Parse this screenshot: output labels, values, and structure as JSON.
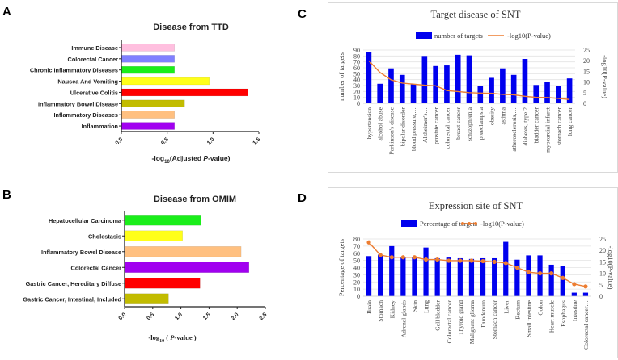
{
  "panel_letters": [
    "A",
    "B",
    "C",
    "D"
  ],
  "chart_data": [
    {
      "id": "A",
      "type": "bar",
      "orientation": "horizontal",
      "title": "Disease from TTD",
      "xlabel_prefix": "-log",
      "xlabel_sub": "10",
      "xlabel_mid": "(Adjusted ",
      "xlabel_italic": "P",
      "xlabel_suffix": "-value)",
      "xlim": [
        0,
        1.5
      ],
      "xticks": [
        0,
        0.5,
        1.0,
        1.5
      ],
      "xtick_labels": [
        "0.0",
        "0.5",
        "1.0",
        "1.5"
      ],
      "grid": false,
      "categories": [
        "Immune Disease",
        "Colorectal Cancer",
        "Chronic Inflammatory Diseases",
        "Nausea And Vomiting",
        "Ulcerative Colitis",
        "Inflammatory Bowel Disease",
        "Inflammatory Diseases",
        "Inflammation"
      ],
      "values": [
        0.58,
        0.58,
        0.58,
        0.96,
        1.38,
        0.69,
        0.58,
        0.58
      ],
      "colors": [
        "#ffbfdf",
        "#8080ff",
        "#1aee1a",
        "#ffff1a",
        "#ff0000",
        "#c2bc00",
        "#ffc080",
        "#a100f0"
      ]
    },
    {
      "id": "B",
      "type": "bar",
      "orientation": "horizontal",
      "title": "Disease from OMIM",
      "xlabel_prefix": "-log",
      "xlabel_sub": "10",
      "xlabel_mid": " ( ",
      "xlabel_italic": "P",
      "xlabel_suffix": "-value )",
      "xlim": [
        0,
        2.5
      ],
      "xticks": [
        0,
        0.5,
        1.0,
        1.5,
        2.0,
        2.5
      ],
      "xtick_labels": [
        "0.0",
        "0.5",
        "1.0",
        "1.5",
        "2.0",
        "2.5"
      ],
      "grid": false,
      "categories": [
        "Hepatocellular Carcinoma",
        "Cholestasis",
        "Inflammatory Bowel Disease",
        "Colorectal Cancer",
        "Gastric Cancer, Hereditary Diffuse",
        "Gastric Cancer, Intestinal, Included"
      ],
      "values": [
        1.36,
        1.03,
        2.07,
        2.21,
        1.34,
        0.78
      ],
      "colors": [
        "#1aee1a",
        "#ffff1a",
        "#ffc080",
        "#a100f0",
        "#ff0000",
        "#c2bc00"
      ]
    },
    {
      "id": "C",
      "type": "bar",
      "combo": "bar+line",
      "title": "Target disease of SNT",
      "ylabel": "number of targets",
      "y2label": "-log10(P-value)",
      "ylim": [
        0,
        90
      ],
      "yticks": [
        0,
        10,
        20,
        30,
        40,
        50,
        60,
        70,
        80,
        90
      ],
      "y2lim": [
        0,
        25
      ],
      "y2ticks": [
        0,
        5,
        10,
        15,
        20,
        25
      ],
      "grid": true,
      "legend_position": "top",
      "legend": [
        "number of targets",
        "-log10(P-value)"
      ],
      "line_markers": false,
      "categories": [
        "hypertension",
        "alcohol abuse",
        "Parkinson's disease",
        "bipolar disorder",
        "blood pressure,…",
        "Alzheimer's…",
        "prostate cancer",
        "colorectal cancer",
        "breast cancer",
        "schizophrenia",
        "preeclampsia",
        "obesity",
        "asthma",
        "atherosclerosis,…",
        "diabetes, type 2",
        "bladder cancer",
        "myocardial infarct",
        "stomach cancer",
        "lung cancer"
      ],
      "series": [
        {
          "name": "number of targets",
          "axis": "left",
          "kind": "bar",
          "color": "#0000ee",
          "values": [
            87,
            33,
            59,
            48,
            32,
            80,
            63,
            64,
            82,
            81,
            30,
            43,
            59,
            48,
            75,
            31,
            36,
            29,
            42
          ]
        },
        {
          "name": "-log10(P-value)",
          "axis": "right",
          "kind": "line",
          "color": "#ed7d31",
          "values": [
            20,
            14.5,
            11,
            9.5,
            9,
            8.5,
            8.2,
            6,
            5.5,
            5,
            4.8,
            4.7,
            4.2,
            4,
            3.3,
            2.8,
            2.7,
            2.3,
            1.8
          ]
        }
      ]
    },
    {
      "id": "D",
      "type": "bar",
      "combo": "bar+line",
      "title": "Expression site of SNT",
      "ylabel": "Percentage of targets",
      "y2label": "-log10(P-value)",
      "ylim": [
        0,
        80
      ],
      "yticks": [
        0,
        10,
        20,
        30,
        40,
        50,
        60,
        70,
        80
      ],
      "y2lim": [
        0,
        25
      ],
      "y2ticks": [
        0,
        5,
        10,
        15,
        20,
        25
      ],
      "grid": true,
      "legend_position": "top",
      "legend": [
        "Percentage of targets",
        "-log10(P-value)"
      ],
      "line_markers": true,
      "categories": [
        "Brain",
        "Stomach",
        "Kidney",
        "Adrenal glands",
        "Skin",
        "Lung",
        "Gall bladder",
        "Colorectal cancer",
        "Thyroid gland",
        "Malignant glioma",
        "Duodenum",
        "Stomach cancer",
        "Liver",
        "Rectum",
        "Small intestine",
        "Colon",
        "Heart muscle",
        "Esophagus",
        "Intestine",
        "Colorectal cancer…"
      ],
      "series": [
        {
          "name": "Percentage of targets",
          "axis": "left",
          "kind": "bar",
          "color": "#0000ee",
          "values": [
            56,
            58,
            70,
            54,
            54,
            68,
            53,
            54,
            53,
            52,
            53,
            53,
            76,
            51,
            57,
            57,
            44,
            42,
            5,
            5
          ]
        },
        {
          "name": "-log10(P-value)",
          "axis": "right",
          "kind": "line",
          "color": "#ed7d31",
          "values": [
            23.5,
            18,
            17,
            17,
            17,
            16,
            16,
            15.5,
            15.5,
            15.5,
            15.3,
            15,
            14.5,
            12.5,
            10.5,
            10,
            10,
            8,
            5.3,
            4.3
          ]
        }
      ]
    }
  ]
}
